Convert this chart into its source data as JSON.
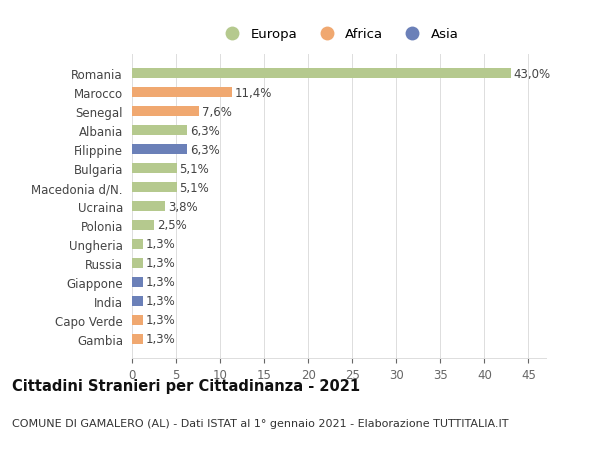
{
  "categories": [
    "Romania",
    "Marocco",
    "Senegal",
    "Albania",
    "Filippine",
    "Bulgaria",
    "Macedonia d/N.",
    "Ucraina",
    "Polonia",
    "Ungheria",
    "Russia",
    "Giappone",
    "India",
    "Capo Verde",
    "Gambia"
  ],
  "values": [
    43.0,
    11.4,
    7.6,
    6.3,
    6.3,
    5.1,
    5.1,
    3.8,
    2.5,
    1.3,
    1.3,
    1.3,
    1.3,
    1.3,
    1.3
  ],
  "labels": [
    "43,0%",
    "11,4%",
    "7,6%",
    "6,3%",
    "6,3%",
    "5,1%",
    "5,1%",
    "3,8%",
    "2,5%",
    "1,3%",
    "1,3%",
    "1,3%",
    "1,3%",
    "1,3%",
    "1,3%"
  ],
  "continents": [
    "Europa",
    "Africa",
    "Africa",
    "Europa",
    "Asia",
    "Europa",
    "Europa",
    "Europa",
    "Europa",
    "Europa",
    "Europa",
    "Asia",
    "Asia",
    "Africa",
    "Africa"
  ],
  "colors": {
    "Europa": "#b5c98e",
    "Africa": "#f0a870",
    "Asia": "#6b80b8"
  },
  "title": "Cittadini Stranieri per Cittadinanza - 2021",
  "subtitle": "COMUNE DI GAMALERO (AL) - Dati ISTAT al 1° gennaio 2021 - Elaborazione TUTTITALIA.IT",
  "xlim": [
    0,
    47
  ],
  "xticks": [
    0,
    5,
    10,
    15,
    20,
    25,
    30,
    35,
    40,
    45
  ],
  "background_color": "#ffffff",
  "grid_color": "#dddddd",
  "bar_height": 0.55,
  "label_fontsize": 8.5,
  "title_fontsize": 10.5,
  "subtitle_fontsize": 8,
  "tick_fontsize": 8.5,
  "legend_fontsize": 9.5
}
